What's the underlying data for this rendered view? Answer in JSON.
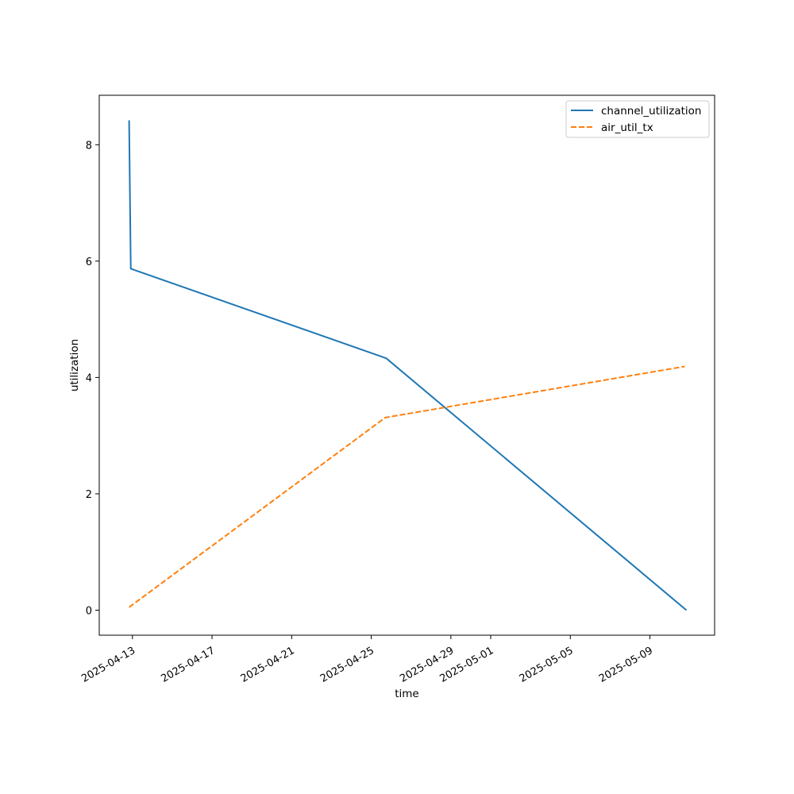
{
  "chart_data": {
    "type": "line",
    "xlabel": "time",
    "ylabel": "utilization",
    "x_type": "date",
    "xlim": [
      "2025-04-11T08:00",
      "2025-05-12T06:00"
    ],
    "ylim": [
      -0.43,
      8.85
    ],
    "xticks": [
      "2025-04-13",
      "2025-04-17",
      "2025-04-21",
      "2025-04-25",
      "2025-04-29",
      "2025-05-01",
      "2025-05-05",
      "2025-05-09"
    ],
    "yticks": [
      0,
      2,
      4,
      6,
      8
    ],
    "grid": false,
    "legend_position": "upper right",
    "series": [
      {
        "name": "channel_utilization",
        "color": "#1f77b4",
        "style": "solid",
        "points": [
          {
            "x": "2025-04-12T20:00",
            "y": 8.42
          },
          {
            "x": "2025-04-12T22:00",
            "y": 5.87
          },
          {
            "x": "2025-04-25T18:00",
            "y": 4.33
          },
          {
            "x": "2025-05-10T20:00",
            "y": 0.0
          }
        ]
      },
      {
        "name": "air_util_tx",
        "color": "#ff7f0e",
        "style": "dashed",
        "points": [
          {
            "x": "2025-04-12T20:00",
            "y": 0.05
          },
          {
            "x": "2025-04-25T17:00",
            "y": 3.31
          },
          {
            "x": "2025-05-10T18:00",
            "y": 4.19
          }
        ]
      }
    ]
  }
}
